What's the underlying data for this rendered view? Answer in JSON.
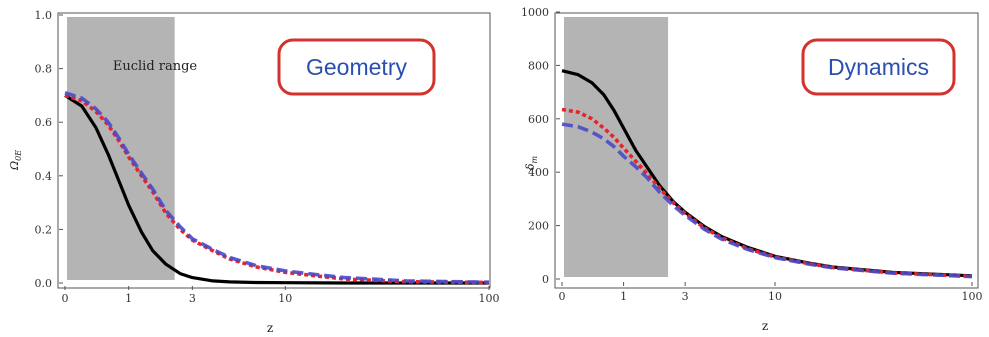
{
  "chart_data": [
    {
      "type": "line",
      "tag": "Geometry",
      "shaded_region_label": "Euclid range",
      "xlabel": "z",
      "ylabel": "Ω0E",
      "ylabel_main": "Ω",
      "ylabel_sub": "0E",
      "y_ticks": [
        "0.0",
        "0.2",
        "0.4",
        "0.6",
        "0.8",
        "1.0"
      ],
      "x_ticks": [
        "0",
        "1",
        "3",
        "10",
        "100"
      ],
      "ylim": [
        0,
        1
      ],
      "xlim": [
        0,
        100
      ],
      "x_scale": "log(1+z)",
      "shaded_range": [
        0,
        2.3
      ],
      "series": [
        {
          "color": "#000000",
          "style": "solid",
          "x": [
            0,
            0.2,
            0.4,
            0.6,
            0.8,
            1.0,
            1.3,
            1.6,
            2.0,
            2.5,
            3,
            4,
            5,
            7,
            10,
            20,
            100
          ],
          "y": [
            0.7,
            0.66,
            0.58,
            0.48,
            0.38,
            0.29,
            0.19,
            0.12,
            0.07,
            0.035,
            0.02,
            0.008,
            0.004,
            0.002,
            0.001,
            0.0,
            0.0
          ]
        },
        {
          "color": "#e8232a",
          "style": "dotted",
          "x": [
            0,
            0.2,
            0.4,
            0.6,
            0.8,
            1.0,
            1.3,
            1.6,
            2.0,
            2.5,
            3,
            4,
            5,
            7,
            10,
            15,
            20,
            40,
            100
          ],
          "y": [
            0.7,
            0.68,
            0.64,
            0.59,
            0.53,
            0.47,
            0.4,
            0.34,
            0.26,
            0.2,
            0.16,
            0.12,
            0.09,
            0.06,
            0.04,
            0.025,
            0.015,
            0.005,
            0.002
          ]
        },
        {
          "color": "#4a4ac8",
          "style": "dashed",
          "x": [
            0,
            0.2,
            0.4,
            0.6,
            0.8,
            1.0,
            1.3,
            1.6,
            2.0,
            2.5,
            3,
            4,
            5,
            7,
            10,
            15,
            20,
            40,
            100
          ],
          "y": [
            0.71,
            0.69,
            0.65,
            0.6,
            0.54,
            0.48,
            0.41,
            0.35,
            0.27,
            0.21,
            0.165,
            0.125,
            0.095,
            0.065,
            0.045,
            0.03,
            0.02,
            0.008,
            0.003
          ]
        }
      ]
    },
    {
      "type": "line",
      "tag": "Dynamics",
      "xlabel": "z",
      "ylabel": "δm",
      "ylabel_main": "δ",
      "ylabel_sub": "m",
      "y_ticks": [
        "0",
        "200",
        "400",
        "600",
        "800",
        "1000"
      ],
      "x_ticks": [
        "0",
        "1",
        "3",
        "10",
        "100"
      ],
      "ylim": [
        0,
        1000
      ],
      "xlim": [
        0,
        100
      ],
      "x_scale": "log(1+z)",
      "shaded_range": [
        0,
        2.3
      ],
      "series": [
        {
          "color": "#000000",
          "style": "solid",
          "x": [
            0,
            0.2,
            0.4,
            0.6,
            0.8,
            1.0,
            1.3,
            1.6,
            2.0,
            2.5,
            3,
            4,
            5,
            7,
            10,
            15,
            20,
            40,
            100
          ],
          "y": [
            780,
            765,
            735,
            690,
            630,
            565,
            480,
            420,
            350,
            290,
            250,
            195,
            160,
            120,
            85,
            60,
            45,
            25,
            12
          ]
        },
        {
          "color": "#e8232a",
          "style": "dotted",
          "x": [
            0,
            0.2,
            0.4,
            0.6,
            0.8,
            1.0,
            1.3,
            1.6,
            2.0,
            2.5,
            3,
            4,
            5,
            7,
            10,
            15,
            20,
            40,
            100
          ],
          "y": [
            635,
            625,
            600,
            565,
            530,
            490,
            440,
            395,
            340,
            285,
            245,
            190,
            155,
            115,
            82,
            58,
            43,
            23,
            10
          ]
        },
        {
          "color": "#4a4ac8",
          "style": "dashed",
          "x": [
            0,
            0.2,
            0.4,
            0.6,
            0.8,
            1.0,
            1.3,
            1.6,
            2.0,
            2.5,
            3,
            4,
            5,
            7,
            10,
            15,
            20,
            40,
            100
          ],
          "y": [
            580,
            570,
            550,
            525,
            495,
            460,
            420,
            380,
            325,
            275,
            238,
            185,
            150,
            112,
            80,
            56,
            42,
            22,
            9
          ]
        }
      ]
    }
  ]
}
